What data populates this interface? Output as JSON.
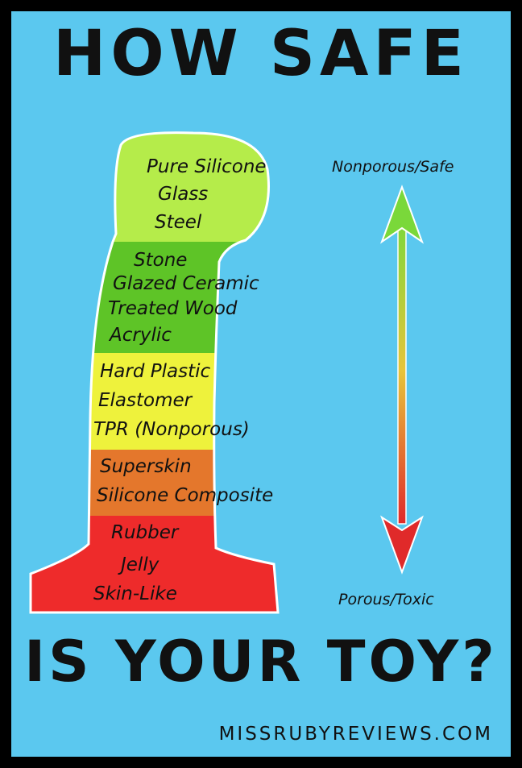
{
  "title_top": "HOW SAFE",
  "title_bottom": "IS YOUR TOY?",
  "website": "MISSRUBYREVIEWS.COM",
  "scale": {
    "top_label": "Nonporous/Safe",
    "bottom_label": "Porous/Toxic"
  },
  "tiers": [
    {
      "color": "#b5ec4a",
      "items": [
        "Pure Silicone",
        "Glass",
        "Steel"
      ]
    },
    {
      "color": "#5ec427",
      "items": [
        "Stone",
        "Glazed Ceramic",
        "Treated Wood",
        "Acrylic"
      ]
    },
    {
      "color": "#eef23c",
      "items": [
        "Hard Plastic",
        "Elastomer",
        "TPR (Nonporous)"
      ]
    },
    {
      "color": "#e4772c",
      "items": [
        "Superskin",
        "Silicone Composite"
      ]
    },
    {
      "color": "#ee2b2b",
      "items": [
        "Rubber",
        "Jelly",
        "Skin-Like"
      ]
    }
  ],
  "colors": {
    "background": "#5bc8ef",
    "border": "#000000",
    "arrow_top": "#7ad83a",
    "arrow_bottom": "#e02a2a"
  }
}
